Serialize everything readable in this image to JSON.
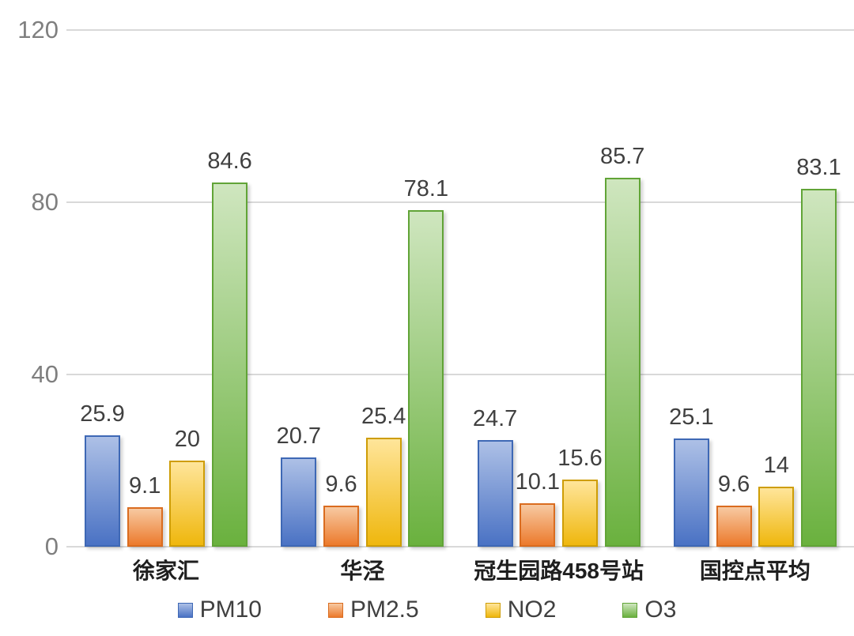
{
  "chart_data": {
    "type": "bar",
    "categories": [
      "徐家汇",
      "华泾",
      "冠生园路458号站",
      "国控点平均"
    ],
    "series": [
      {
        "name": "PM10",
        "values": [
          25.9,
          20.7,
          24.7,
          25.1
        ],
        "color": "#4A72C4",
        "fill_top": "#ADC0E6",
        "fill_bottom": "#4A72C4",
        "border": "#3E68B5"
      },
      {
        "name": "PM2.5",
        "values": [
          9.1,
          9.6,
          10.1,
          9.6
        ],
        "color": "#ED7D31",
        "fill_top": "#F7C9A1",
        "fill_bottom": "#EC7A2C",
        "border": "#DA6C1F"
      },
      {
        "name": "NO2",
        "values": [
          20,
          25.4,
          15.6,
          14
        ],
        "color": "#FFC000",
        "fill_top": "#FFE59A",
        "fill_bottom": "#EFB70D",
        "border": "#CE9D06"
      },
      {
        "name": "O3",
        "values": [
          84.6,
          78.1,
          85.7,
          83.1
        ],
        "color": "#70AD47",
        "fill_top": "#CFE6BF",
        "fill_bottom": "#6AB13E",
        "border": "#61A437"
      }
    ],
    "ylim": [
      0,
      120
    ],
    "yticks": [
      0,
      40,
      80,
      120
    ],
    "grid": true,
    "legend_position": "bottom"
  },
  "colors": {
    "background": "#FFFFFF",
    "gridline": "#D9D9D9",
    "axis_label": "#7F7F7F",
    "data_label": "#404040",
    "category_label": "#1F1F1F",
    "legend_label": "#404040"
  }
}
